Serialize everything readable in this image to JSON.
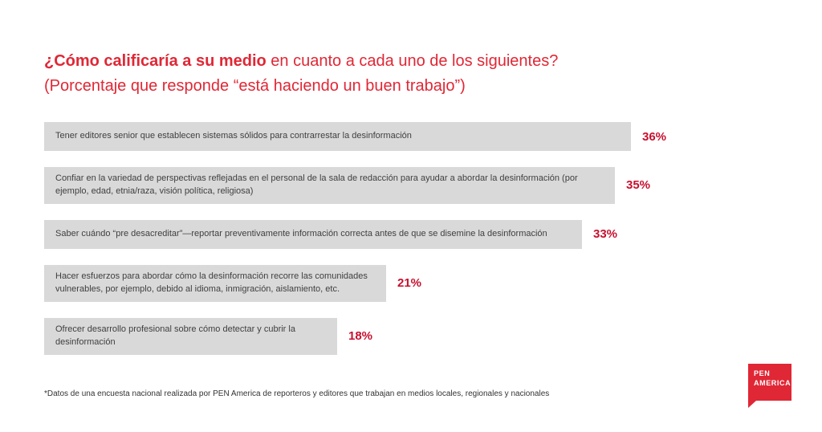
{
  "page": {
    "title_bold": "¿Cómo calificaría a su medio",
    "title_rest": " en cuanto a cada uno de los siguientes?",
    "subtitle": "(Porcentaje que responde “está haciendo un buen trabajo”)",
    "footnote": "*Datos de una encuesta nacional realizada por PEN America de reporteros y editores que trabajan en medios locales, regionales y nacionales",
    "logo": {
      "line1": "PEN",
      "line2": "AMERICA"
    }
  },
  "colors": {
    "accent_red": "#e02735",
    "percent_red": "#c8102e",
    "bar_gray": "#d9d9d9",
    "text_dark": "#3f3f3f"
  },
  "chart_data": {
    "type": "bar",
    "orientation": "horizontal",
    "title": "¿Cómo calificaría a su medio en cuanto a cada uno de los siguientes? (Porcentaje que responde “está haciendo un buen trabajo”)",
    "categories": [
      "Tener editores senior que establecen sistemas sólidos para contrarrestar la desinformación",
      "Confiar en la variedad de perspectivas reflejadas en el personal de la sala de redacción para ayudar a abordar la desinformación (por ejemplo, edad, etnia/raza, visión política, religiosa)",
      "Saber cuándo “pre desacreditar”—reportar preventivamente información correcta antes de que se disemine la desinformación",
      "Hacer esfuerzos para abordar cómo la desinformación recorre las comunidades vulnerables, por ejemplo, debido al idioma, inmigración, aislamiento, etc.",
      "Ofrecer desarrollo profesional sobre cómo detectar y cubrir la desinformación"
    ],
    "values": [
      36,
      35,
      33,
      21,
      18
    ],
    "value_labels": [
      "36%",
      "35%",
      "33%",
      "21%",
      "18%"
    ],
    "xlim": [
      0,
      40
    ],
    "grid": false,
    "legend": false,
    "value_label_position": "right-of-bar"
  }
}
